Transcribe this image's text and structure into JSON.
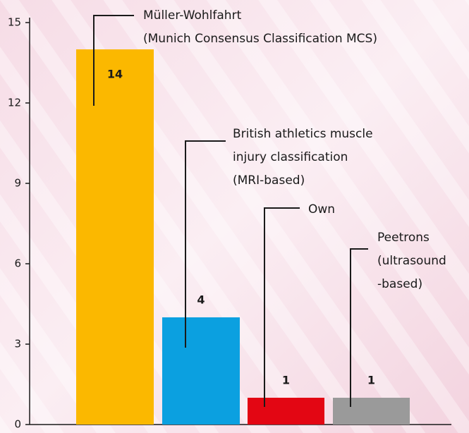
{
  "chart_data": {
    "type": "bar",
    "categories": [
      [
        "Müller-Wohlfahrt",
        "(Munich Consensus Classification MCS)"
      ],
      [
        "British athletics muscle",
        "injury classification",
        "(MRI-based)"
      ],
      [
        "Own"
      ],
      [
        "Peetrons",
        "(ultrasound",
        "-based)"
      ]
    ],
    "values": [
      14,
      4,
      1,
      1
    ],
    "colors": [
      "#fbb800",
      "#0ba0e0",
      "#e30613",
      "#9a9a9a"
    ],
    "ylim": [
      0,
      15
    ],
    "yticks": [
      0,
      3,
      6,
      9,
      12,
      15
    ]
  }
}
